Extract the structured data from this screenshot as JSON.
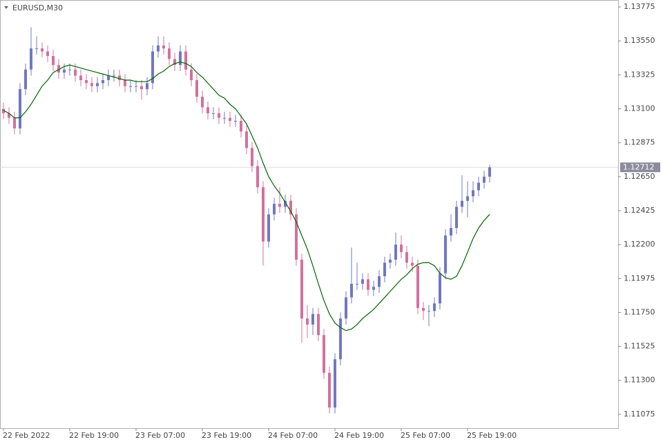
{
  "chart_data": {
    "type": "candlestick",
    "title": "EURUSD,M30",
    "categories": [
      "22 Feb 2022",
      null,
      null,
      null,
      null,
      null,
      null,
      null,
      null,
      null,
      null,
      null,
      "22 Feb 19:00",
      null,
      null,
      null,
      null,
      null,
      null,
      null,
      null,
      null,
      null,
      null,
      "23 Feb 07:00",
      null,
      null,
      null,
      null,
      null,
      null,
      null,
      null,
      null,
      null,
      null,
      "23 Feb 19:00",
      null,
      null,
      null,
      null,
      null,
      null,
      null,
      null,
      null,
      null,
      null,
      "24 Feb 07:00",
      null,
      null,
      null,
      null,
      null,
      null,
      null,
      null,
      null,
      null,
      null,
      "24 Feb 19:00",
      null,
      null,
      null,
      null,
      null,
      null,
      null,
      null,
      null,
      null,
      null,
      "25 Feb 07:00",
      null,
      null,
      null,
      null,
      null,
      null,
      null,
      null,
      null,
      null,
      null,
      "25 Feb 19:00",
      null,
      null,
      null,
      null
    ],
    "open": [
      1.131,
      1.1307,
      1.1304,
      1.1297,
      1.1323,
      1.1336,
      1.135,
      1.135,
      1.1348,
      1.1345,
      1.1339,
      1.1334,
      1.1336,
      1.1336,
      1.1332,
      1.1329,
      1.1327,
      1.1325,
      1.1327,
      1.1329,
      1.1332,
      1.1332,
      1.1329,
      1.1325,
      1.1325,
      1.1325,
      1.1323,
      1.1327,
      1.1348,
      1.1352,
      1.135,
      1.1343,
      1.1339,
      1.1348,
      1.1336,
      1.1329,
      1.1318,
      1.1311,
      1.1307,
      1.1307,
      1.1304,
      1.1304,
      1.1302,
      1.1302,
      1.1295,
      1.1284,
      1.1272,
      1.1258,
      1.1222,
      1.124,
      1.1247,
      1.1245,
      1.1249,
      1.124,
      1.121,
      1.1171,
      1.1167,
      1.1174,
      1.116,
      1.1135,
      1.1112,
      1.1144,
      1.1171,
      1.1185,
      1.1194,
      1.1194,
      1.1197,
      1.119,
      1.1192,
      1.1199,
      1.1208,
      1.121,
      1.122,
      1.1215,
      1.1208,
      1.1206,
      1.1178,
      1.1176,
      1.1176,
      1.1181,
      1.1201,
      1.1226,
      1.1231,
      1.1245,
      1.1249,
      1.1252,
      1.1256,
      1.1261,
      1.1265
    ],
    "high": [
      1.1314,
      1.1311,
      1.1308,
      1.1327,
      1.134,
      1.1364,
      1.1358,
      1.1354,
      1.1352,
      1.1349,
      1.1343,
      1.134,
      1.134,
      1.134,
      1.1336,
      1.1333,
      1.1331,
      1.1331,
      1.1333,
      1.1336,
      1.1336,
      1.1336,
      1.1333,
      1.1329,
      1.1329,
      1.1329,
      1.1331,
      1.1352,
      1.1358,
      1.1358,
      1.1354,
      1.1347,
      1.1352,
      1.1352,
      1.134,
      1.1333,
      1.1322,
      1.1315,
      1.1311,
      1.1311,
      1.1308,
      1.1308,
      1.1306,
      1.1306,
      1.1299,
      1.1288,
      1.1276,
      1.1262,
      1.1244,
      1.1251,
      1.1258,
      1.1253,
      1.1253,
      1.1244,
      1.1214,
      1.118,
      1.1178,
      1.1178,
      1.1164,
      1.1139,
      1.1148,
      1.1175,
      1.1189,
      1.1218,
      1.1208,
      1.1201,
      1.1201,
      1.1196,
      1.1203,
      1.1212,
      1.1214,
      1.1228,
      1.1226,
      1.1219,
      1.1212,
      1.121,
      1.1182,
      1.118,
      1.1185,
      1.1205,
      1.123,
      1.124,
      1.1249,
      1.1266,
      1.1262,
      1.1262,
      1.1265,
      1.1269,
      1.1273
    ],
    "low": [
      1.1303,
      1.13,
      1.1293,
      1.1293,
      1.1319,
      1.1332,
      1.1346,
      1.1344,
      1.1341,
      1.1335,
      1.133,
      1.133,
      1.1332,
      1.1328,
      1.1325,
      1.1323,
      1.1321,
      1.1321,
      1.1323,
      1.1325,
      1.1328,
      1.1325,
      1.1321,
      1.1321,
      1.1321,
      1.1316,
      1.1319,
      1.1323,
      1.1344,
      1.1346,
      1.1339,
      1.1335,
      1.1335,
      1.1332,
      1.1325,
      1.1314,
      1.1307,
      1.1303,
      1.1303,
      1.13,
      1.13,
      1.1298,
      1.1298,
      1.1291,
      1.128,
      1.1268,
      1.1254,
      1.1206,
      1.1218,
      1.1236,
      1.1241,
      1.1241,
      1.1236,
      1.1206,
      1.1155,
      1.1158,
      1.116,
      1.1156,
      1.1131,
      1.1108,
      1.1108,
      1.114,
      1.1167,
      1.1181,
      1.119,
      1.119,
      1.1186,
      1.1186,
      1.1188,
      1.1195,
      1.1204,
      1.1206,
      1.1211,
      1.1204,
      1.1202,
      1.1174,
      1.117,
      1.1166,
      1.1172,
      1.1177,
      1.1197,
      1.1222,
      1.1227,
      1.1241,
      1.1238,
      1.1248,
      1.1252,
      1.1257,
      1.1261
    ],
    "close": [
      1.1307,
      1.1304,
      1.1297,
      1.1323,
      1.1336,
      1.135,
      1.135,
      1.1348,
      1.1345,
      1.1339,
      1.1334,
      1.1336,
      1.1336,
      1.1332,
      1.1329,
      1.1327,
      1.1325,
      1.1327,
      1.1329,
      1.1332,
      1.1332,
      1.1329,
      1.1325,
      1.1325,
      1.1325,
      1.1323,
      1.1327,
      1.1348,
      1.1352,
      1.135,
      1.1343,
      1.1339,
      1.1348,
      1.1336,
      1.1329,
      1.1318,
      1.1311,
      1.1307,
      1.1307,
      1.1304,
      1.1304,
      1.1302,
      1.1302,
      1.1295,
      1.1284,
      1.1272,
      1.1258,
      1.1222,
      1.124,
      1.1247,
      1.1245,
      1.1249,
      1.124,
      1.121,
      1.1171,
      1.1167,
      1.1174,
      1.116,
      1.1135,
      1.1112,
      1.1144,
      1.1171,
      1.1185,
      1.1194,
      1.1194,
      1.1197,
      1.119,
      1.1192,
      1.1199,
      1.1208,
      1.121,
      1.122,
      1.1215,
      1.1208,
      1.1206,
      1.1178,
      1.1176,
      1.1176,
      1.1181,
      1.1201,
      1.1226,
      1.1231,
      1.1245,
      1.1249,
      1.1252,
      1.1256,
      1.1261,
      1.1265,
      1.12712
    ],
    "up_color": "#7078c0",
    "down_color": "#d4709c",
    "overlay": {
      "type": "line",
      "color": "#006400",
      "values": [
        1.1309,
        1.1307,
        1.1304,
        1.1304,
        1.1308,
        1.1313,
        1.1319,
        1.1325,
        1.1329,
        1.1334,
        1.1336,
        1.1338,
        1.1339,
        1.1338,
        1.1337,
        1.1336,
        1.1335,
        1.1334,
        1.1333,
        1.1332,
        1.1331,
        1.133,
        1.1329,
        1.1329,
        1.1328,
        1.1328,
        1.1328,
        1.133,
        1.1333,
        1.1335,
        1.1338,
        1.134,
        1.1341,
        1.134,
        1.1338,
        1.1334,
        1.1331,
        1.1327,
        1.1323,
        1.1319,
        1.1317,
        1.1313,
        1.131,
        1.1305,
        1.13,
        1.1292,
        1.1284,
        1.1274,
        1.1265,
        1.1259,
        1.1254,
        1.1248,
        1.1242,
        1.1235,
        1.1226,
        1.1217,
        1.1206,
        1.1194,
        1.1183,
        1.1174,
        1.1168,
        1.1165,
        1.1163,
        1.1164,
        1.1167,
        1.1171,
        1.1174,
        1.1177,
        1.1181,
        1.1185,
        1.1189,
        1.1193,
        1.1197,
        1.12,
        1.1204,
        1.1207,
        1.1208,
        1.1208,
        1.1206,
        1.1201,
        1.1198,
        1.1197,
        1.1199,
        1.1206,
        1.1215,
        1.1224,
        1.1231,
        1.1236,
        1.124
      ]
    },
    "current_price": 1.12712,
    "ylim": [
      1.10983,
      1.13821
    ],
    "yticks": [
      1.13775,
      {
        "value": 1.1355,
        "label": "1.13550"
      },
      1.13325,
      {
        "value": 1.131,
        "label": "1.13100"
      },
      1.12875,
      {
        "value": 1.1265,
        "label": "1.12650"
      },
      1.12425,
      {
        "value": 1.122,
        "label": "1.12200"
      },
      1.11975,
      {
        "value": 1.1175,
        "label": "1.11750"
      },
      1.11525,
      {
        "value": 1.113,
        "label": "1.11300"
      },
      1.11075
    ]
  }
}
